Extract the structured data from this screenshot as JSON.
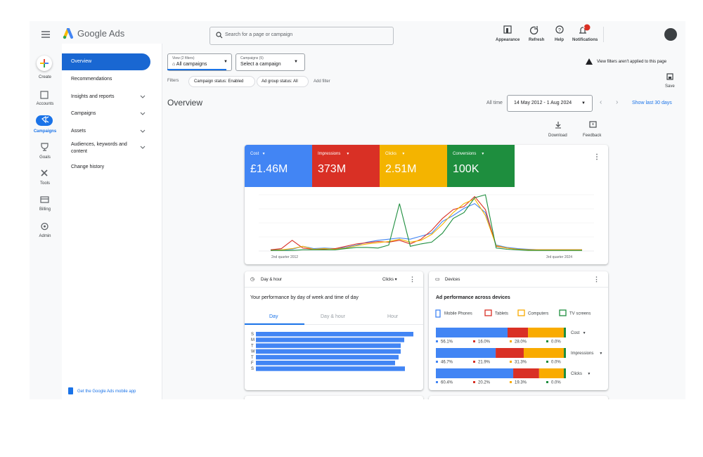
{
  "header": {
    "product": "Google Ads",
    "search": "Search for a page or campaign",
    "actions": [
      "Appearance",
      "Refresh",
      "Help",
      "Notifications"
    ],
    "badge": "1"
  },
  "rail": [
    "Create",
    "Accounts",
    "Campaigns",
    "Goals",
    "Tools",
    "Billing",
    "Admin"
  ],
  "nav": {
    "items": [
      "Overview",
      "Recommendations",
      "Insights and reports",
      "Campaigns",
      "Assets",
      "Audiences, keywords and content",
      "Change history"
    ],
    "footer": "Get the Google Ads mobile app"
  },
  "toolbar": {
    "view_label": "View (2 filters)",
    "view_value": "All campaigns",
    "campaigns_label": "Campaigns (5)",
    "campaigns_value": "Select a campaign",
    "notice": "View filters aren't applied to this page",
    "save": "Save",
    "filters_label": "Filters",
    "filters": [
      "Campaign status: Enabled",
      "Ad group status: All"
    ],
    "add_filter": "Add filter"
  },
  "page": {
    "title": "Overview",
    "range_label": "All time",
    "range": "14 May 2012 - 1 Aug 2024",
    "shortcut": "Show last 30 days",
    "tools": [
      "Download",
      "Feedback"
    ]
  },
  "metrics": [
    {
      "name": "Cost",
      "value": "£1.46M",
      "color": "#4285f4"
    },
    {
      "name": "Impressions",
      "value": "373M",
      "color": "#d93025"
    },
    {
      "name": "Clicks",
      "value": "2.51M",
      "color": "#f4b400"
    },
    {
      "name": "Conversions",
      "value": "100K",
      "color": "#1e8e3e"
    }
  ],
  "overview_chart": {
    "type": "line",
    "x_labels": [
      "2nd quarter 2012",
      "3rd quarter 2024"
    ],
    "series": [
      {
        "color": "#4285f4",
        "values": [
          2,
          2,
          3,
          8,
          4,
          5,
          4,
          6,
          10,
          15,
          18,
          20,
          22,
          20,
          25,
          30,
          50,
          60,
          72,
          80,
          65,
          10,
          6,
          4,
          3,
          2,
          2,
          2,
          2,
          2
        ]
      },
      {
        "color": "#d93025",
        "values": [
          2,
          4,
          18,
          5,
          3,
          3,
          4,
          8,
          12,
          14,
          16,
          15,
          18,
          12,
          20,
          35,
          55,
          70,
          75,
          92,
          70,
          8,
          5,
          3,
          2,
          2,
          2,
          2,
          2,
          2
        ]
      },
      {
        "color": "#f4b400",
        "values": [
          1,
          2,
          4,
          8,
          3,
          4,
          3,
          5,
          9,
          12,
          14,
          16,
          20,
          15,
          18,
          28,
          45,
          65,
          80,
          88,
          60,
          9,
          5,
          3,
          2,
          2,
          2,
          2,
          2,
          2
        ]
      },
      {
        "color": "#1e8e3e",
        "values": [
          1,
          1,
          1,
          2,
          2,
          2,
          2,
          4,
          6,
          6,
          5,
          10,
          80,
          8,
          12,
          15,
          30,
          55,
          65,
          90,
          95,
          5,
          3,
          2,
          1,
          1,
          1,
          1,
          1,
          1
        ]
      }
    ]
  },
  "day_hour": {
    "title": "Day & hour",
    "metric": "Clicks",
    "heading": "Your performance by day of week and time of day",
    "tabs": [
      "Day",
      "Day & hour",
      "Hour"
    ],
    "chart": {
      "type": "bar",
      "categories": [
        "S",
        "M",
        "T",
        "W",
        "T",
        "F",
        "S"
      ],
      "values": [
        224,
        211,
        206,
        206,
        203,
        198,
        212
      ],
      "color": "#4285f4"
    }
  },
  "devices": {
    "title": "Devices",
    "heading": "Ad performance across devices",
    "legend": [
      {
        "name": "Mobile Phones",
        "color": "#4285f4"
      },
      {
        "name": "Tablets",
        "color": "#d93025"
      },
      {
        "name": "Computers",
        "color": "#f9ab00"
      },
      {
        "name": "TV screens",
        "color": "#1e8e3e"
      }
    ],
    "rows": [
      {
        "metric": "Cost",
        "values": [
          56.1,
          16.0,
          28.0,
          0.0
        ],
        "value_labels": [
          "56.1%",
          "16.0%",
          "28.0%",
          "0.0%"
        ]
      },
      {
        "metric": "Impressions",
        "values": [
          46.7,
          21.9,
          31.3,
          0.0
        ],
        "value_labels": [
          "46.7%",
          "21.9%",
          "31.3%",
          "0.0%"
        ]
      },
      {
        "metric": "Clicks",
        "values": [
          60.4,
          20.2,
          19.3,
          0.0
        ],
        "value_labels": [
          "60.4%",
          "20.2%",
          "19.3%",
          "0.0%"
        ]
      }
    ]
  }
}
